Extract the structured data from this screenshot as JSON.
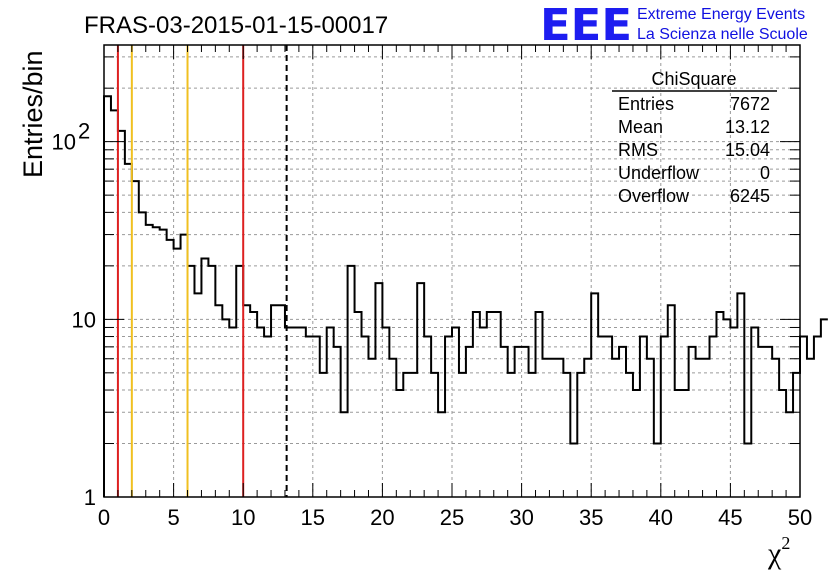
{
  "title": "FRAS-03-2015-01-15-00017",
  "logo": {
    "mark": "EEE",
    "line1": "Extreme Energy Events",
    "line2": "La Scienza nelle Scuole",
    "color": "#1d1df0"
  },
  "stats": {
    "header": "ChiSquare",
    "rows": [
      {
        "label": "Entries",
        "value": "7672"
      },
      {
        "label": "Mean",
        "value": "13.12"
      },
      {
        "label": "RMS",
        "value": "15.04"
      },
      {
        "label": "Underflow",
        "value": "0"
      },
      {
        "label": "Overflow",
        "value": "6245"
      }
    ]
  },
  "chart_data": {
    "type": "histogram",
    "title": "FRAS-03-2015-01-15-00017",
    "xlabel": "χ",
    "xlabel_sup": "2",
    "ylabel": "Entries/bin",
    "xlim": [
      0,
      50
    ],
    "ylim": [
      1,
      350
    ],
    "yscale": "log",
    "grid": true,
    "bin_width": 0.5,
    "x_ticks": [
      0,
      5,
      10,
      15,
      20,
      25,
      30,
      35,
      40,
      45,
      50
    ],
    "y_ticks": [
      {
        "value": 1,
        "label": "1"
      },
      {
        "value": 10,
        "label": "10"
      },
      {
        "value": 100,
        "label": "10",
        "sup": "2"
      }
    ],
    "values": [
      180,
      150,
      115,
      75,
      60,
      40,
      34,
      33,
      32,
      28,
      25,
      30,
      20,
      14,
      22,
      20,
      12,
      10,
      9,
      20,
      12,
      11,
      9,
      8,
      12,
      12,
      9,
      9,
      9,
      8,
      8,
      5,
      9,
      7,
      3,
      20,
      11,
      8,
      6,
      16,
      9,
      6,
      4,
      5,
      5,
      16,
      8,
      5,
      3,
      8,
      9,
      5,
      7,
      11,
      9,
      11,
      11,
      7,
      5,
      7,
      7,
      5,
      11,
      6,
      6,
      6,
      5,
      2,
      5,
      6,
      14,
      8,
      8,
      6,
      7,
      5,
      4,
      8,
      6,
      2,
      8,
      12,
      4,
      4,
      7,
      6,
      6,
      8,
      11,
      10,
      9,
      14,
      2,
      9,
      7,
      7,
      6,
      4,
      3,
      5,
      8,
      6,
      8,
      10
    ],
    "lines": [
      {
        "x": 1,
        "color": "#dd2020",
        "style": "solid"
      },
      {
        "x": 2,
        "color": "#f0c020",
        "style": "solid"
      },
      {
        "x": 6,
        "color": "#f0c020",
        "style": "solid"
      },
      {
        "x": 10,
        "color": "#dd2020",
        "style": "solid"
      },
      {
        "x": 13.12,
        "color": "#000000",
        "style": "dashed"
      }
    ]
  }
}
